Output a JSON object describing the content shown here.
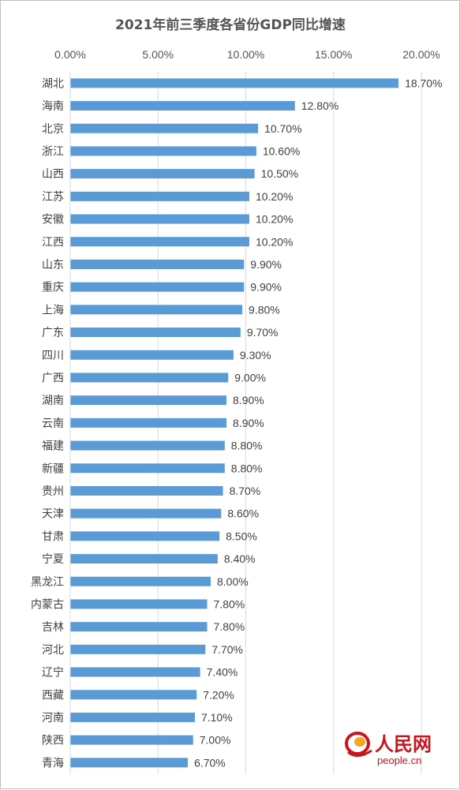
{
  "chart_data": {
    "type": "bar",
    "orientation": "horizontal",
    "title": "2021年前三季度各省份GDP同比增速",
    "xlim": [
      0,
      20
    ],
    "x_ticks": [
      "0.00%",
      "5.00%",
      "10.00%",
      "15.00%",
      "20.00%"
    ],
    "x_axis_position": "top",
    "grid": true,
    "categories": [
      "湖北",
      "海南",
      "北京",
      "浙江",
      "山西",
      "江苏",
      "安徽",
      "江西",
      "山东",
      "重庆",
      "上海",
      "广东",
      "四川",
      "广西",
      "湖南",
      "云南",
      "福建",
      "新疆",
      "贵州",
      "天津",
      "甘肃",
      "宁夏",
      "黑龙江",
      "内蒙古",
      "吉林",
      "河北",
      "辽宁",
      "西藏",
      "河南",
      "陕西",
      "青海"
    ],
    "values": [
      18.7,
      12.8,
      10.7,
      10.6,
      10.5,
      10.2,
      10.2,
      10.2,
      9.9,
      9.9,
      9.8,
      9.7,
      9.3,
      9.0,
      8.9,
      8.9,
      8.8,
      8.8,
      8.7,
      8.6,
      8.5,
      8.4,
      8.0,
      7.8,
      7.8,
      7.7,
      7.4,
      7.2,
      7.1,
      7.0,
      6.7
    ],
    "data_labels": [
      "18.70%",
      "12.80%",
      "10.70%",
      "10.60%",
      "10.50%",
      "10.20%",
      "10.20%",
      "10.20%",
      "9.90%",
      "9.90%",
      "9.80%",
      "9.70%",
      "9.30%",
      "9.00%",
      "8.90%",
      "8.90%",
      "8.80%",
      "8.80%",
      "8.70%",
      "8.60%",
      "8.50%",
      "8.40%",
      "8.00%",
      "7.80%",
      "7.80%",
      "7.70%",
      "7.40%",
      "7.20%",
      "7.10%",
      "7.00%",
      "6.70%"
    ],
    "bar_color": "#5b9bd5"
  },
  "watermark": {
    "text": "人民网",
    "sub": "people.cn",
    "color": "#c8161d",
    "accent": "#f5a623"
  }
}
